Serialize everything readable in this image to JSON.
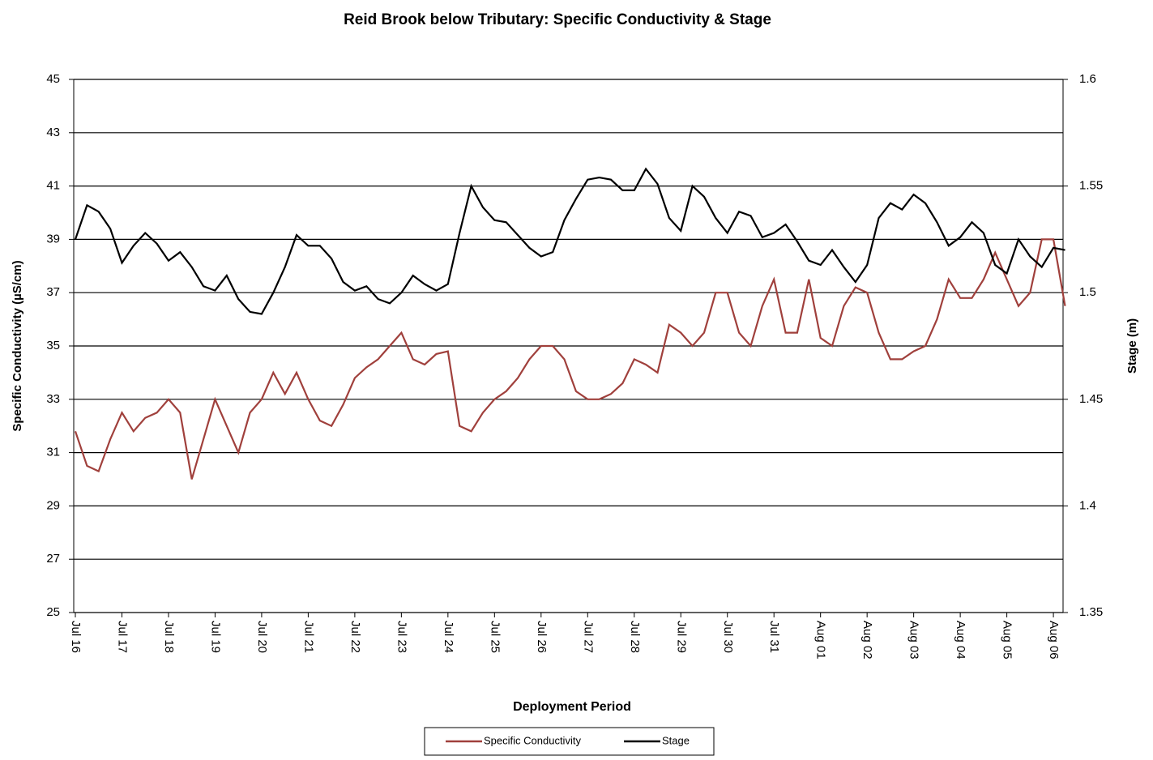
{
  "chart_data": {
    "type": "line",
    "title": "Reid Brook below Tributary: Specific Conductivity & Stage",
    "x_label": "Deployment Period",
    "y_label": "Specific Conductivity  (µS/cm)",
    "y2_label": "Stage (m)",
    "categories": [
      "Jul 16",
      null,
      null,
      null,
      "Jul 17",
      null,
      null,
      null,
      "Jul 18",
      null,
      null,
      null,
      "Jul 19",
      null,
      null,
      null,
      "Jul 20",
      null,
      null,
      null,
      "Jul 21",
      null,
      null,
      null,
      "Jul 22",
      null,
      null,
      null,
      "Jul 23",
      null,
      null,
      null,
      "Jul 24",
      null,
      null,
      null,
      "Jul 25",
      null,
      null,
      null,
      "Jul 26",
      null,
      null,
      null,
      "Jul 27",
      null,
      null,
      null,
      "Jul 28",
      null,
      null,
      null,
      "Jul 29",
      null,
      null,
      null,
      "Jul 30",
      null,
      null,
      null,
      "Jul 31",
      null,
      null,
      null,
      "Aug 01",
      null,
      null,
      null,
      "Aug 02",
      null,
      null,
      null,
      "Aug 03",
      null,
      null,
      null,
      "Aug 04",
      null,
      null,
      null,
      "Aug 05",
      null,
      null,
      null,
      "Aug 06",
      null
    ],
    "series": [
      {
        "name": "Specific Conductivity",
        "color": "#a0403c",
        "axis": "y",
        "values": [
          31.8,
          30.5,
          30.3,
          31.5,
          32.5,
          31.8,
          32.3,
          32.5,
          33,
          32.5,
          30,
          31.5,
          33,
          32,
          31,
          32.5,
          33,
          34,
          33.2,
          34,
          33,
          32.2,
          32,
          32.8,
          33.8,
          34.2,
          34.5,
          35,
          35.5,
          34.5,
          34.3,
          34.7,
          34.8,
          32,
          31.8,
          32.5,
          33,
          33.3,
          33.8,
          34.5,
          35,
          35,
          34.5,
          33.3,
          33,
          33,
          33.2,
          33.6,
          34.5,
          34.3,
          34,
          35.8,
          35.5,
          35,
          35.5,
          37,
          37,
          35.5,
          35,
          36.5,
          37.5,
          35.5,
          35.5,
          37.5,
          35.3,
          35,
          36.5,
          37.2,
          37,
          35.5,
          34.5,
          34.5,
          34.8,
          35,
          36,
          37.5,
          36.8,
          36.8,
          37.5,
          38.5,
          37.5,
          36.5,
          37,
          39,
          39,
          36.5
        ]
      },
      {
        "name": "Stage",
        "color": "#000000",
        "axis": "y2",
        "values": [
          1.525,
          1.541,
          1.538,
          1.53,
          1.514,
          1.522,
          1.528,
          1.523,
          1.515,
          1.519,
          1.512,
          1.503,
          1.501,
          1.508,
          1.497,
          1.491,
          1.49,
          1.5,
          1.512,
          1.527,
          1.522,
          1.522,
          1.516,
          1.505,
          1.501,
          1.503,
          1.497,
          1.495,
          1.5,
          1.508,
          1.504,
          1.501,
          1.504,
          1.528,
          1.55,
          1.54,
          1.534,
          1.533,
          1.527,
          1.521,
          1.517,
          1.519,
          1.534,
          1.544,
          1.553,
          1.554,
          1.553,
          1.548,
          1.548,
          1.558,
          1.551,
          1.535,
          1.529,
          1.55,
          1.545,
          1.535,
          1.528,
          1.538,
          1.536,
          1.526,
          1.528,
          1.532,
          1.524,
          1.515,
          1.513,
          1.52,
          1.512,
          1.505,
          1.513,
          1.535,
          1.542,
          1.539,
          1.546,
          1.542,
          1.533,
          1.522,
          1.526,
          1.533,
          1.528,
          1.513,
          1.509,
          1.525,
          1.517,
          1.512,
          1.521,
          1.52
        ]
      }
    ],
    "ylim": [
      25,
      45
    ],
    "yticks": [
      25,
      27,
      29,
      31,
      33,
      35,
      37,
      39,
      41,
      43,
      45
    ],
    "y2lim": [
      1.35,
      1.6
    ],
    "y2ticks": [
      1.35,
      1.4,
      1.45,
      1.5,
      1.55,
      1.6
    ],
    "grid": true
  }
}
